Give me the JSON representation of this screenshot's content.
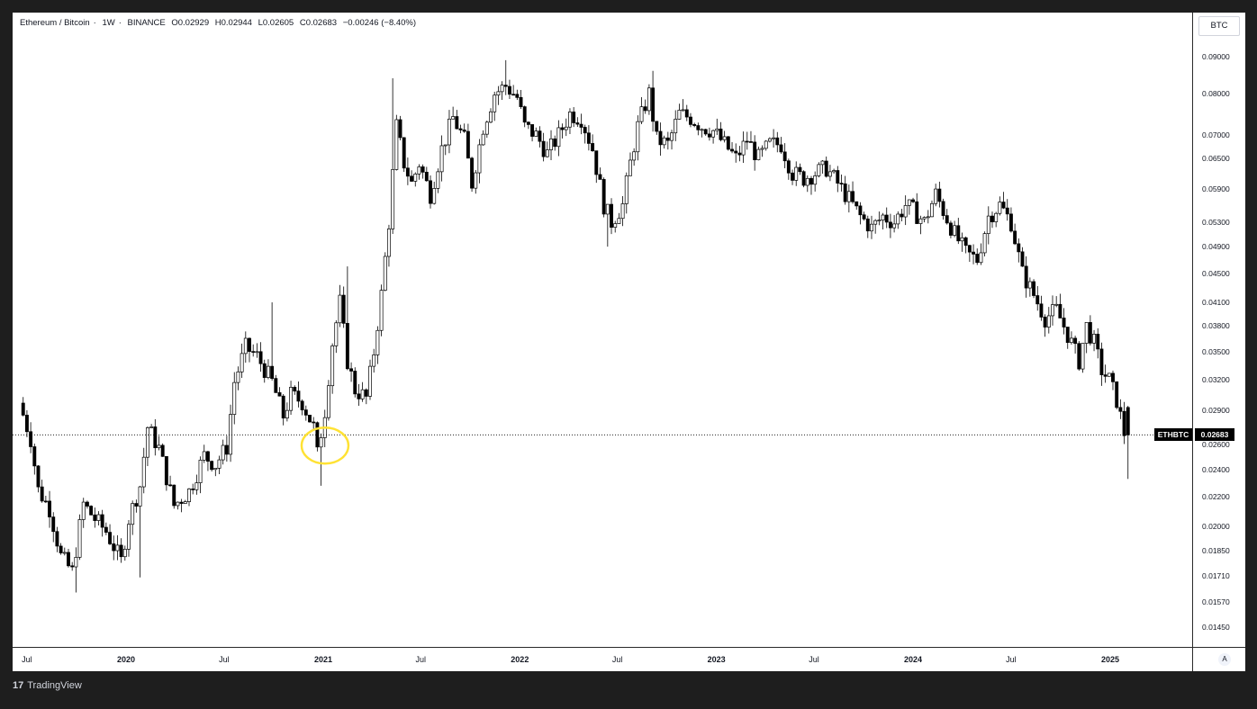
{
  "legend": {
    "pair": "Ethereum / Bitcoin",
    "interval": "1W",
    "exchange": "BINANCE",
    "open": "O0.02929",
    "high": "H0.02944",
    "low": "L0.02605",
    "close": "C0.02683",
    "change": "−0.00246 (−8.40%)"
  },
  "currency": "BTC",
  "symbol_label": "ETHBTC",
  "last_price_label": "0.02683",
  "auto_label": "A",
  "footer": {
    "brand": "TradingView",
    "logo_glyph": "17"
  },
  "colors": {
    "up": "#ffffff",
    "down": "#000000",
    "wick": "#000000",
    "annotation": "#ffe234",
    "price_line": "#000000"
  },
  "chart_data": {
    "type": "candlestick",
    "scale": "log",
    "interval": "1W",
    "y_ticks": [
      "0.09000",
      "0.08000",
      "0.07000",
      "0.06500",
      "0.05900",
      "0.05300",
      "0.04900",
      "0.04500",
      "0.04100",
      "0.03800",
      "0.03500",
      "0.03200",
      "0.02900",
      "0.02600",
      "0.02400",
      "0.02200",
      "0.02000",
      "0.01850",
      "0.01710",
      "0.01570",
      "0.01450"
    ],
    "x_ticks": [
      {
        "label": "Jul",
        "major": false,
        "date": "2019-07-01"
      },
      {
        "label": "2020",
        "major": true,
        "date": "2020-01-01"
      },
      {
        "label": "Jul",
        "major": false,
        "date": "2020-07-01"
      },
      {
        "label": "2021",
        "major": true,
        "date": "2021-01-01"
      },
      {
        "label": "Jul",
        "major": false,
        "date": "2021-07-01"
      },
      {
        "label": "2022",
        "major": true,
        "date": "2022-01-01"
      },
      {
        "label": "Jul",
        "major": false,
        "date": "2022-07-01"
      },
      {
        "label": "2023",
        "major": true,
        "date": "2023-01-01"
      },
      {
        "label": "Jul",
        "major": false,
        "date": "2023-07-01"
      },
      {
        "label": "2024",
        "major": true,
        "date": "2024-01-01"
      },
      {
        "label": "Jul",
        "major": false,
        "date": "2024-07-01"
      },
      {
        "label": "2025",
        "major": true,
        "date": "2025-01-01"
      }
    ],
    "last_price": 0.02683,
    "last_candle": {
      "o": 0.02929,
      "h": 0.02944,
      "l": 0.02605,
      "c": 0.02683
    },
    "close_path": [
      [
        "2019-06-24",
        0.0297
      ],
      [
        "2019-07-15",
        0.0265
      ],
      [
        "2019-07-29",
        0.0225
      ],
      [
        "2019-08-19",
        0.0212
      ],
      [
        "2019-09-09",
        0.0182
      ],
      [
        "2019-09-30",
        0.0173
      ],
      [
        "2019-10-21",
        0.0215
      ],
      [
        "2019-11-11",
        0.0205
      ],
      [
        "2019-12-02",
        0.0197
      ],
      [
        "2019-12-30",
        0.0179
      ],
      [
        "2020-01-13",
        0.0205
      ],
      [
        "2020-02-03",
        0.0228
      ],
      [
        "2020-02-17",
        0.0275
      ],
      [
        "2020-03-09",
        0.0257
      ],
      [
        "2020-04-06",
        0.0214
      ],
      [
        "2020-05-04",
        0.0224
      ],
      [
        "2020-06-01",
        0.0251
      ],
      [
        "2020-06-22",
        0.0244
      ],
      [
        "2020-07-13",
        0.0258
      ],
      [
        "2020-07-27",
        0.0318
      ],
      [
        "2020-08-17",
        0.0355
      ],
      [
        "2020-09-07",
        0.0345
      ],
      [
        "2020-10-05",
        0.0318
      ],
      [
        "2020-10-26",
        0.0285
      ],
      [
        "2020-11-09",
        0.0305
      ],
      [
        "2020-11-30",
        0.0298
      ],
      [
        "2020-12-21",
        0.0275
      ],
      [
        "2020-12-28",
        0.0252
      ],
      [
        "2021-01-11",
        0.029
      ],
      [
        "2021-01-25",
        0.036
      ],
      [
        "2021-02-08",
        0.041
      ],
      [
        "2021-02-22",
        0.034
      ],
      [
        "2021-03-08",
        0.031
      ],
      [
        "2021-03-29",
        0.0302
      ],
      [
        "2021-04-12",
        0.035
      ],
      [
        "2021-04-26",
        0.042
      ],
      [
        "2021-05-10",
        0.053
      ],
      [
        "2021-05-24",
        0.072
      ],
      [
        "2021-06-07",
        0.064
      ],
      [
        "2021-06-21",
        0.06
      ],
      [
        "2021-07-05",
        0.064
      ],
      [
        "2021-07-26",
        0.058
      ],
      [
        "2021-08-16",
        0.067
      ],
      [
        "2021-09-06",
        0.074
      ],
      [
        "2021-09-27",
        0.069
      ],
      [
        "2021-10-11",
        0.06
      ],
      [
        "2021-11-01",
        0.072
      ],
      [
        "2021-11-22",
        0.08
      ],
      [
        "2021-12-13",
        0.082
      ],
      [
        "2022-01-03",
        0.079
      ],
      [
        "2022-01-17",
        0.072
      ],
      [
        "2022-02-07",
        0.07
      ],
      [
        "2022-02-28",
        0.066
      ],
      [
        "2022-03-21",
        0.07
      ],
      [
        "2022-04-11",
        0.075
      ],
      [
        "2022-05-02",
        0.074
      ],
      [
        "2022-05-23",
        0.067
      ],
      [
        "2022-06-13",
        0.056
      ],
      [
        "2022-06-27",
        0.053
      ],
      [
        "2022-07-18",
        0.056
      ],
      [
        "2022-08-01",
        0.064
      ],
      [
        "2022-08-15",
        0.072
      ],
      [
        "2022-09-05",
        0.08
      ],
      [
        "2022-09-19",
        0.069
      ],
      [
        "2022-10-10",
        0.068
      ],
      [
        "2022-10-31",
        0.075
      ],
      [
        "2022-11-21",
        0.074
      ],
      [
        "2022-12-12",
        0.072
      ],
      [
        "2023-01-02",
        0.071
      ],
      [
        "2023-01-23",
        0.068
      ],
      [
        "2023-02-13",
        0.065
      ],
      [
        "2023-03-06",
        0.069
      ],
      [
        "2023-03-27",
        0.065
      ],
      [
        "2023-04-17",
        0.068
      ],
      [
        "2023-05-08",
        0.068
      ],
      [
        "2023-05-29",
        0.062
      ],
      [
        "2023-06-19",
        0.061
      ],
      [
        "2023-07-10",
        0.062
      ],
      [
        "2023-07-31",
        0.063
      ],
      [
        "2023-08-21",
        0.06
      ],
      [
        "2023-09-11",
        0.057
      ],
      [
        "2023-10-02",
        0.054
      ],
      [
        "2023-10-23",
        0.052
      ],
      [
        "2023-11-13",
        0.054
      ],
      [
        "2023-12-04",
        0.053
      ],
      [
        "2023-12-25",
        0.056
      ],
      [
        "2024-01-08",
        0.055
      ],
      [
        "2024-01-29",
        0.053
      ],
      [
        "2024-02-19",
        0.058
      ],
      [
        "2024-03-04",
        0.055
      ],
      [
        "2024-03-25",
        0.051
      ],
      [
        "2024-04-15",
        0.048
      ],
      [
        "2024-05-06",
        0.047
      ],
      [
        "2024-05-27",
        0.054
      ],
      [
        "2024-06-17",
        0.056
      ],
      [
        "2024-07-08",
        0.053
      ],
      [
        "2024-07-29",
        0.045
      ],
      [
        "2024-08-19",
        0.042
      ],
      [
        "2024-09-09",
        0.039
      ],
      [
        "2024-09-30",
        0.04
      ],
      [
        "2024-10-21",
        0.037
      ],
      [
        "2024-11-11",
        0.034
      ],
      [
        "2024-11-25",
        0.038
      ],
      [
        "2024-12-09",
        0.036
      ],
      [
        "2024-12-23",
        0.033
      ],
      [
        "2025-01-06",
        0.032
      ],
      [
        "2025-01-20",
        0.03
      ],
      [
        "2025-02-03",
        0.027
      ],
      [
        "2025-02-10",
        0.0293
      ]
    ],
    "notable_wicks": [
      {
        "date": "2019-09-30",
        "low": 0.0162
      },
      {
        "date": "2020-01-27",
        "low": 0.017
      },
      {
        "date": "2020-09-28",
        "high": 0.041
      },
      {
        "date": "2020-12-28",
        "low": 0.0228
      },
      {
        "date": "2021-02-15",
        "high": 0.046
      },
      {
        "date": "2021-05-10",
        "high": 0.084
      },
      {
        "date": "2021-12-06",
        "high": 0.089
      },
      {
        "date": "2022-06-13",
        "low": 0.049
      },
      {
        "date": "2022-09-05",
        "high": 0.086
      },
      {
        "date": "2025-02-03",
        "low": 0.0233
      }
    ]
  }
}
